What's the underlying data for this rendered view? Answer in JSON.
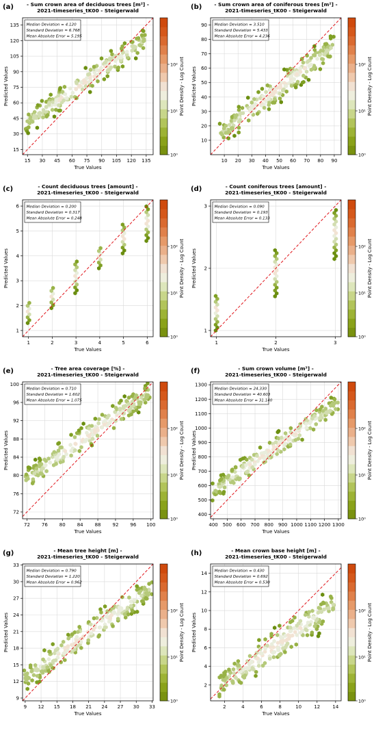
{
  "figure": {
    "common_subtitle": "2021-timeseries_tK00 - Steigerwald",
    "colorbar_label": "Point Density - Log Count",
    "colorbar_ticks": [
      "10⁰",
      "10¹",
      "10²"
    ],
    "x_axis_label": "True Values",
    "y_axis_label": "Predicted Values",
    "stat_labels": [
      "Median Deviation",
      "Standard Deviation",
      "Mean Absolute Error"
    ]
  },
  "chart_data": [
    {
      "panel": "(a)",
      "type": "scatter",
      "title": "- Sum crown area of deciduous trees [m²] -",
      "subtitle": "2021-timeseries_tK00 - Steigerwald",
      "xlabel": "True Values",
      "ylabel": "Predicted Values",
      "xlim": [
        10,
        142
      ],
      "ylim": [
        10,
        142
      ],
      "xticks": [
        15,
        30,
        45,
        60,
        75,
        90,
        105,
        120,
        135
      ],
      "yticks": [
        15,
        30,
        45,
        60,
        75,
        90,
        105,
        120,
        135
      ],
      "stats": {
        "median_deviation": "4.120",
        "standard_deviation": "6.768",
        "mean_absolute_error": "5.195"
      },
      "trend": {
        "y_at_low": 40,
        "y_at_high": 122,
        "spread": 5
      },
      "grid": true,
      "reference_line": "y = x (red dashed)"
    },
    {
      "panel": "(b)",
      "type": "scatter",
      "title": "- Sum crown area of coniferous trees [m²] -",
      "subtitle": "2021-timeseries_tK00 - Steigerwald",
      "xlabel": "True Values",
      "ylabel": "Predicted Values",
      "xlim": [
        0,
        95
      ],
      "ylim": [
        0,
        95
      ],
      "xticks": [
        10,
        20,
        30,
        40,
        50,
        60,
        70,
        80,
        90
      ],
      "yticks": [
        10,
        20,
        30,
        40,
        50,
        60,
        70,
        80,
        90
      ],
      "stats": {
        "median_deviation": "3.510",
        "standard_deviation": "5.433",
        "mean_absolute_error": "4.236"
      },
      "trend": {
        "y_at_low": 14,
        "y_at_high": 76,
        "spread": 4
      },
      "grid": true,
      "reference_line": "y = x (red dashed)"
    },
    {
      "panel": "(c)",
      "type": "scatter",
      "title": "- Count deciduous trees [amount] -",
      "subtitle": "2021-timeseries_tK00 - Steigerwald",
      "xlabel": "True Values",
      "ylabel": "Predicted Values",
      "xlim": [
        0.75,
        6.25
      ],
      "ylim": [
        0.75,
        6.25
      ],
      "xticks": [
        1,
        2,
        3,
        4,
        5,
        6
      ],
      "yticks": [
        1,
        2,
        3,
        4,
        5,
        6
      ],
      "stats": {
        "median_deviation": "0.200",
        "standard_deviation": "0.317",
        "mean_absolute_error": "0.248"
      },
      "columns": [
        [
          1,
          1.3,
          2.2
        ],
        [
          2,
          1.9,
          2.8
        ],
        [
          3,
          2.5,
          3.8
        ],
        [
          4,
          3.5,
          4.4
        ],
        [
          5,
          4.1,
          5.3
        ],
        [
          6,
          4.6,
          6.0
        ]
      ],
      "grid": true,
      "reference_line": "y = x (red dashed)"
    },
    {
      "panel": "(d)",
      "type": "scatter",
      "title": "- Count coniferous trees [amount] -",
      "subtitle": "2021-timeseries_tK00 - Steigerwald",
      "xlabel": "True Values",
      "ylabel": "Predicted Values",
      "xlim": [
        0.9,
        3.1
      ],
      "ylim": [
        0.9,
        3.1
      ],
      "xticks": [
        1,
        2,
        3
      ],
      "yticks": [
        1,
        2,
        3
      ],
      "stats": {
        "median_deviation": "0.090",
        "standard_deviation": "0.193",
        "mean_absolute_error": "0.133"
      },
      "columns": [
        [
          1,
          1.0,
          1.6
        ],
        [
          2,
          1.55,
          2.3
        ],
        [
          3,
          2.15,
          2.95
        ]
      ],
      "grid": true,
      "reference_line": "y = x (red dashed)"
    },
    {
      "panel": "(e)",
      "type": "scatter",
      "title": "- Tree area coverage [%] -",
      "subtitle": "2021-timeseries_tK00 - Steigerwald",
      "xlabel": "True Values",
      "ylabel": "Predicted Values",
      "xlim": [
        71,
        100.5
      ],
      "ylim": [
        70.5,
        100.5
      ],
      "xticks": [
        72,
        76,
        80,
        84,
        88,
        92,
        96,
        100
      ],
      "yticks": [
        72,
        76,
        80,
        84,
        88,
        92,
        96,
        100
      ],
      "stats": {
        "median_deviation": "0.710",
        "standard_deviation": "1.602",
        "mean_absolute_error": "1.075"
      },
      "trend": {
        "y_at_low": 79,
        "y_at_high": 98.5,
        "spread": 1.2
      },
      "grid": true,
      "reference_line": "y = x (red dashed)"
    },
    {
      "panel": "(f)",
      "type": "scatter",
      "title": "- Sum crown volume [m³] -",
      "subtitle": "2021-timeseries_tK00 - Steigerwald",
      "xlabel": "True Values",
      "ylabel": "Predicted Values",
      "xlim": [
        380,
        1320
      ],
      "ylim": [
        370,
        1320
      ],
      "xticks": [
        400,
        500,
        600,
        700,
        800,
        900,
        1000,
        1100,
        1200,
        1300
      ],
      "yticks": [
        400,
        500,
        600,
        700,
        800,
        900,
        1000,
        1100,
        1200,
        1300
      ],
      "stats": {
        "median_deviation": "24.330",
        "standard_deviation": "40.603",
        "mean_absolute_error": "31.140"
      },
      "trend": {
        "y_at_low": 560,
        "y_at_high": 1170,
        "spread": 35
      },
      "grid": true,
      "reference_line": "y = x (red dashed)"
    },
    {
      "panel": "(g)",
      "type": "scatter",
      "title": "- Mean tree height [m] -",
      "subtitle": "2021-timeseries_tK00 - Steigerwald",
      "xlabel": "True Values",
      "ylabel": "Predicted Values",
      "xlim": [
        8.5,
        33.2
      ],
      "ylim": [
        8.5,
        33.2
      ],
      "xticks": [
        9,
        12,
        15,
        18,
        21,
        24,
        27,
        30,
        33
      ],
      "yticks": [
        9,
        12,
        15,
        18,
        21,
        24,
        27,
        30,
        33
      ],
      "stats": {
        "median_deviation": "0.790",
        "standard_deviation": "1.220",
        "mean_absolute_error": "0.962"
      },
      "trend": {
        "y_at_low": 12.5,
        "y_at_high": 29,
        "spread": 1.1
      },
      "grid": true,
      "reference_line": "y = x (red dashed)"
    },
    {
      "panel": "(h)",
      "type": "scatter",
      "title": "- Mean crown base height [m] -",
      "subtitle": "2021-timeseries_tK00 - Steigerwald",
      "xlabel": "True Values",
      "ylabel": "Predicted Values",
      "xlim": [
        0.5,
        14.6
      ],
      "ylim": [
        0.3,
        15
      ],
      "xticks": [
        2,
        4,
        6,
        8,
        10,
        12,
        14
      ],
      "yticks": [
        2,
        4,
        6,
        8,
        10,
        12,
        14
      ],
      "stats": {
        "median_deviation": "0.430",
        "standard_deviation": "0.692",
        "mean_absolute_error": "0.530"
      },
      "trend": {
        "y_at_low": 1.8,
        "y_at_high": 10.8,
        "spread": 0.8
      },
      "grid": true,
      "reference_line": "y = x (red dashed)"
    }
  ]
}
